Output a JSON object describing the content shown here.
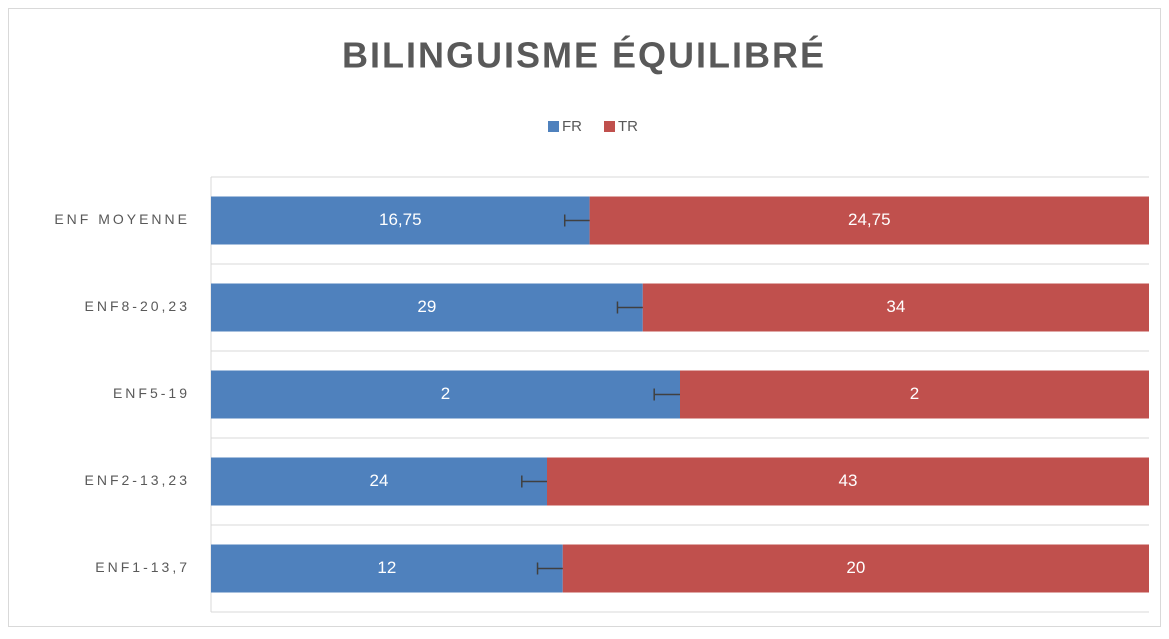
{
  "chart_data": {
    "type": "stacked_bar_100_horizontal",
    "title": "BILINGUISME ÉQUILIBRÉ",
    "categories": [
      "ENF MOYENNE",
      "ENF8-20,23",
      "ENF5-19",
      "ENF2-13,23",
      "ENF1-13,7"
    ],
    "series": [
      {
        "name": "FR",
        "color": "#4f81bd",
        "values": [
          16.75,
          29,
          2,
          24,
          12
        ],
        "value_labels": [
          "16,75",
          "29",
          "2",
          "24",
          "12"
        ],
        "errors": [
          1.1,
          1.7,
          0.11,
          1.8,
          0.86
        ]
      },
      {
        "name": "TR",
        "color": "#c0504d",
        "values": [
          24.75,
          34,
          2,
          43,
          20
        ],
        "value_labels": [
          "24,75",
          "34",
          "2",
          "43",
          "20"
        ]
      }
    ],
    "legend": "top",
    "grid": true
  }
}
